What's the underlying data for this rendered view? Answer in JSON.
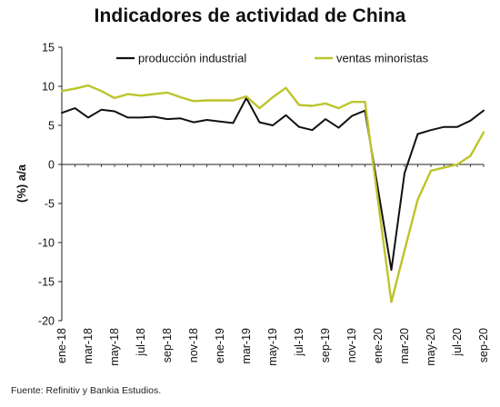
{
  "source": "Fuente: Refinitiv y Bankia Estudios.",
  "chart_data": {
    "type": "line",
    "title": "Indicadores de actividad de China",
    "xlabel": "",
    "ylabel": "(%) a/a",
    "ylim": [
      -20,
      15
    ],
    "yticks": [
      -20,
      -15,
      -10,
      -5,
      0,
      5,
      10,
      15
    ],
    "xtick_labels": [
      "ene-18",
      "mar-18",
      "may-18",
      "jul-18",
      "sep-18",
      "nov-18",
      "ene-19",
      "mar-19",
      "may-19",
      "jul-19",
      "sep-19",
      "nov-19",
      "ene-20",
      "mar-20",
      "may-20",
      "jul-20",
      "sep-20"
    ],
    "categories": [
      "ene-18",
      "feb-18",
      "mar-18",
      "abr-18",
      "may-18",
      "jun-18",
      "jul-18",
      "ago-18",
      "sep-18",
      "oct-18",
      "nov-18",
      "dic-18",
      "ene-19",
      "feb-19",
      "mar-19",
      "abr-19",
      "may-19",
      "jun-19",
      "jul-19",
      "ago-19",
      "sep-19",
      "oct-19",
      "nov-19",
      "dic-19",
      "ene-20",
      "feb-20",
      "mar-20",
      "abr-20",
      "may-20",
      "jun-20",
      "jul-20",
      "ago-20",
      "sep-20"
    ],
    "legend_position": "top",
    "grid": false,
    "series": [
      {
        "name": "producción industrial",
        "color": "#111111",
        "values": [
          6.6,
          7.2,
          6.0,
          7.0,
          6.8,
          6.0,
          6.0,
          6.1,
          5.8,
          5.9,
          5.4,
          5.7,
          5.5,
          5.3,
          8.5,
          5.4,
          5.0,
          6.3,
          4.8,
          4.4,
          5.8,
          4.7,
          6.2,
          6.9,
          null,
          -13.5,
          -1.1,
          3.9,
          4.4,
          4.8,
          4.8,
          5.6,
          6.9
        ]
      },
      {
        "name": "ventas minoristas",
        "color": "#bdc42a",
        "values": [
          9.4,
          9.7,
          10.1,
          9.4,
          8.5,
          9.0,
          8.8,
          9.0,
          9.2,
          8.6,
          8.1,
          8.2,
          8.2,
          8.2,
          8.7,
          7.2,
          8.6,
          9.8,
          7.6,
          7.5,
          7.8,
          7.2,
          8.0,
          8.0,
          null,
          -17.6,
          -11.0,
          -4.5,
          -0.8,
          -0.4,
          0.0,
          1.1,
          4.1
        ]
      }
    ]
  }
}
